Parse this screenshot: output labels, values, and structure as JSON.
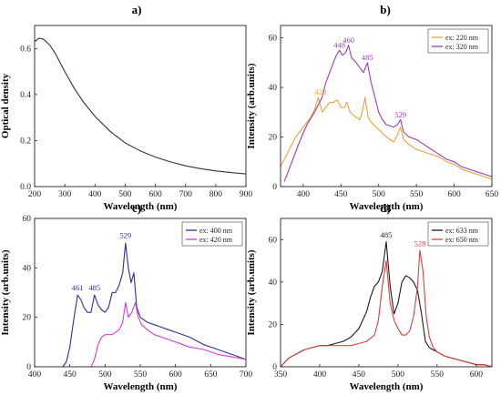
{
  "chart_data": [
    {
      "panel": "a)",
      "type": "line",
      "xlabel": "Wavelength (nm)",
      "ylabel": "Optical density",
      "xlim": [
        200,
        900
      ],
      "ylim": [
        0,
        0.7
      ],
      "xticks": [
        200,
        300,
        400,
        500,
        600,
        700,
        800,
        900
      ],
      "yticks": [
        0.0,
        0.2,
        0.4,
        0.6
      ],
      "ytick_labels": [
        "0.0",
        "0.2",
        "0.4",
        "0.6"
      ],
      "grid": false,
      "series": [
        {
          "color": "#333333",
          "x": [
            200,
            215,
            230,
            250,
            270,
            300,
            330,
            360,
            400,
            450,
            500,
            550,
            600,
            650,
            700,
            750,
            800,
            850,
            900
          ],
          "y": [
            0.63,
            0.645,
            0.64,
            0.615,
            0.575,
            0.5,
            0.43,
            0.37,
            0.305,
            0.24,
            0.19,
            0.155,
            0.128,
            0.107,
            0.09,
            0.078,
            0.068,
            0.061,
            0.055
          ]
        }
      ]
    },
    {
      "panel": "b)",
      "type": "line",
      "xlabel": "Wavelength (nm)",
      "ylabel": "Intensity (arb.units)",
      "xlim": [
        370,
        650
      ],
      "ylim": [
        0,
        65
      ],
      "xticks": [
        400,
        450,
        500,
        550,
        600,
        650
      ],
      "yticks": [
        0,
        20,
        40,
        60
      ],
      "grid": false,
      "legend_position": "top-right",
      "series": [
        {
          "name": "ex: 220 nm",
          "color": "#e8a33a",
          "x": [
            370,
            380,
            390,
            400,
            410,
            415,
            420,
            425,
            430,
            435,
            440,
            445,
            450,
            455,
            458,
            462,
            466,
            470,
            475,
            478,
            482,
            486,
            490,
            500,
            510,
            520,
            525,
            529,
            533,
            540,
            550,
            560,
            570,
            580,
            590,
            600,
            610,
            620,
            630,
            640,
            650
          ],
          "y": [
            8,
            14,
            20,
            24,
            28,
            31,
            36,
            30,
            32,
            34,
            34,
            35,
            32,
            32,
            34,
            30,
            29,
            28,
            27,
            30,
            36,
            28,
            26,
            23,
            20,
            18,
            21,
            24,
            19,
            17,
            15,
            14,
            13,
            12,
            10,
            9,
            7,
            6,
            5,
            4,
            3
          ]
        },
        {
          "name": "ex: 320 nm",
          "color": "#9b3cb7",
          "x": [
            375,
            385,
            395,
            405,
            415,
            425,
            430,
            435,
            440,
            444,
            448,
            452,
            456,
            460,
            464,
            470,
            475,
            480,
            485,
            490,
            495,
            500,
            505,
            510,
            520,
            525,
            529,
            533,
            540,
            550,
            560,
            570,
            580,
            590,
            600,
            610,
            620,
            630,
            640,
            650
          ],
          "y": [
            2,
            10,
            18,
            25,
            30,
            36,
            42,
            46,
            50,
            53,
            55,
            53,
            54,
            57,
            52,
            50,
            48,
            46,
            50,
            42,
            36,
            30,
            27,
            25,
            24,
            25,
            27,
            22,
            20,
            19,
            17,
            15,
            13,
            11,
            10,
            8,
            7,
            6,
            5,
            4
          ]
        }
      ],
      "annotations": [
        {
          "text": "423",
          "x": 423,
          "y": 37,
          "color": "#e8a33a"
        },
        {
          "text": "448",
          "x": 448,
          "y": 56,
          "color": "#9b3cb7"
        },
        {
          "text": "460",
          "x": 460,
          "y": 58,
          "color": "#9b3cb7"
        },
        {
          "text": "485",
          "x": 485,
          "y": 51,
          "color": "#9b3cb7"
        },
        {
          "text": "529",
          "x": 529,
          "y": 28,
          "color": "#9b3cb7"
        }
      ]
    },
    {
      "panel": "c)",
      "type": "line",
      "xlabel": "Wavelength (nm)",
      "ylabel": "Intensity (arb.units)",
      "xlim": [
        400,
        700
      ],
      "ylim": [
        0,
        60
      ],
      "xticks": [
        400,
        450,
        500,
        550,
        600,
        650,
        700
      ],
      "yticks": [
        0,
        20,
        40,
        60
      ],
      "grid": false,
      "legend_position": "top-right",
      "series": [
        {
          "name": "ex: 400 nm",
          "color": "#2b2f94",
          "x": [
            440,
            445,
            450,
            455,
            461,
            466,
            470,
            475,
            480,
            485,
            490,
            495,
            500,
            505,
            510,
            515,
            520,
            525,
            529,
            533,
            537,
            541,
            545,
            550,
            560,
            570,
            580,
            590,
            600,
            620,
            640,
            660,
            680,
            700
          ],
          "y": [
            0,
            2,
            8,
            18,
            29,
            27,
            24,
            22,
            22,
            29,
            25,
            23,
            22,
            24,
            30,
            30,
            33,
            38,
            50,
            40,
            34,
            38,
            24,
            20,
            18,
            17,
            16,
            15,
            14,
            12,
            9,
            7,
            5,
            3
          ]
        },
        {
          "name": "ex: 420 nm",
          "color": "#d93ad6",
          "x": [
            480,
            485,
            490,
            495,
            500,
            505,
            510,
            520,
            525,
            529,
            533,
            538,
            543,
            547,
            552,
            560,
            570,
            580,
            590,
            600,
            620,
            640,
            660,
            680,
            700
          ],
          "y": [
            0,
            3,
            9,
            12,
            13,
            13,
            13,
            15,
            18,
            26,
            20,
            22,
            26,
            20,
            17,
            15,
            13,
            12,
            11,
            10,
            8,
            7,
            5,
            4,
            3
          ]
        }
      ],
      "annotations": [
        {
          "text": "461",
          "x": 461,
          "y": 31,
          "color": "#2b2f94"
        },
        {
          "text": "485",
          "x": 485,
          "y": 31,
          "color": "#2b2f94"
        },
        {
          "text": "529",
          "x": 529,
          "y": 52,
          "color": "#2b2f94"
        }
      ]
    },
    {
      "panel": "d)",
      "type": "line",
      "xlabel": "Wavelength (nm)",
      "ylabel": "Intensity (arb.units)",
      "xlim": [
        350,
        620
      ],
      "ylim": [
        0,
        70
      ],
      "xticks": [
        350,
        400,
        450,
        500,
        550,
        600
      ],
      "yticks": [
        0,
        20,
        40,
        60
      ],
      "grid": false,
      "legend_position": "top-right",
      "series": [
        {
          "name": "ex: 633 nm",
          "color": "#1a1a1a",
          "x": [
            350,
            360,
            370,
            380,
            390,
            400,
            410,
            420,
            430,
            440,
            450,
            460,
            465,
            470,
            475,
            480,
            485,
            490,
            495,
            500,
            505,
            510,
            515,
            520,
            525,
            530,
            535,
            540,
            545,
            550,
            560,
            570,
            580,
            590,
            600,
            610,
            620
          ],
          "y": [
            0,
            4,
            6,
            8,
            9,
            10,
            10,
            11,
            12,
            14,
            18,
            26,
            33,
            38,
            40,
            45,
            59,
            38,
            25,
            30,
            40,
            43,
            42,
            40,
            36,
            25,
            12,
            9,
            8,
            7,
            5,
            4,
            3,
            2,
            1,
            1,
            0
          ]
        },
        {
          "name": "ex: 650 nm",
          "color": "#d94040",
          "x": [
            350,
            360,
            370,
            380,
            390,
            400,
            410,
            420,
            430,
            440,
            450,
            460,
            470,
            475,
            480,
            485,
            490,
            495,
            500,
            505,
            510,
            515,
            520,
            525,
            528,
            532,
            536,
            540,
            545,
            550,
            555,
            560,
            570,
            580,
            590,
            600,
            610,
            620
          ],
          "y": [
            0,
            4,
            6,
            8,
            9,
            10,
            10,
            10,
            10,
            10,
            11,
            12,
            15,
            22,
            38,
            50,
            30,
            22,
            18,
            15,
            15,
            17,
            24,
            38,
            55,
            45,
            24,
            14,
            9,
            7,
            6,
            5,
            4,
            3,
            2,
            1,
            1,
            0
          ]
        }
      ],
      "annotations": [
        {
          "text": "485",
          "x": 485,
          "y": 61,
          "color": "#1a1a1a"
        },
        {
          "text": "528",
          "x": 528,
          "y": 57,
          "color": "#d94040"
        }
      ]
    }
  ]
}
